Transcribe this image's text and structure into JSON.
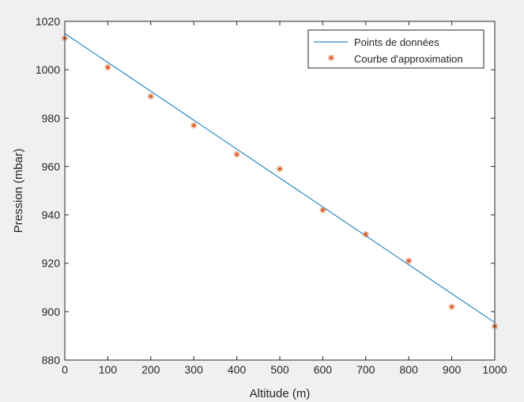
{
  "chart_data": {
    "type": "line",
    "title": "",
    "xlabel": "Altitude (m)",
    "ylabel": "Pression (mbar)",
    "xlim": [
      0,
      1000
    ],
    "ylim": [
      880,
      1020
    ],
    "xticks": [
      0,
      100,
      200,
      300,
      400,
      500,
      600,
      700,
      800,
      900,
      1000
    ],
    "yticks": [
      880,
      900,
      920,
      940,
      960,
      980,
      1000,
      1020
    ],
    "xtick_labels": [
      "0",
      "100",
      "200",
      "300",
      "400",
      "500",
      "600",
      "700",
      "800",
      "900",
      "1000"
    ],
    "ytick_labels": [
      "880",
      "900",
      "920",
      "940",
      "960",
      "980",
      "1000",
      "1020"
    ],
    "grid": false,
    "legend_position": "top-right",
    "series": [
      {
        "name": "Points de données",
        "style": "line",
        "color": "#0072BD",
        "x": [
          0,
          1000
        ],
        "y": [
          1015,
          895.5
        ]
      },
      {
        "name": "Courbe d'approximation",
        "style": "markers",
        "marker": "asterisk",
        "color": "#D95319",
        "x": [
          0,
          100,
          200,
          300,
          400,
          500,
          600,
          700,
          800,
          900,
          1000
        ],
        "y": [
          1013,
          1001,
          989,
          977,
          965,
          959,
          942,
          932,
          921,
          902,
          894
        ]
      }
    ]
  }
}
